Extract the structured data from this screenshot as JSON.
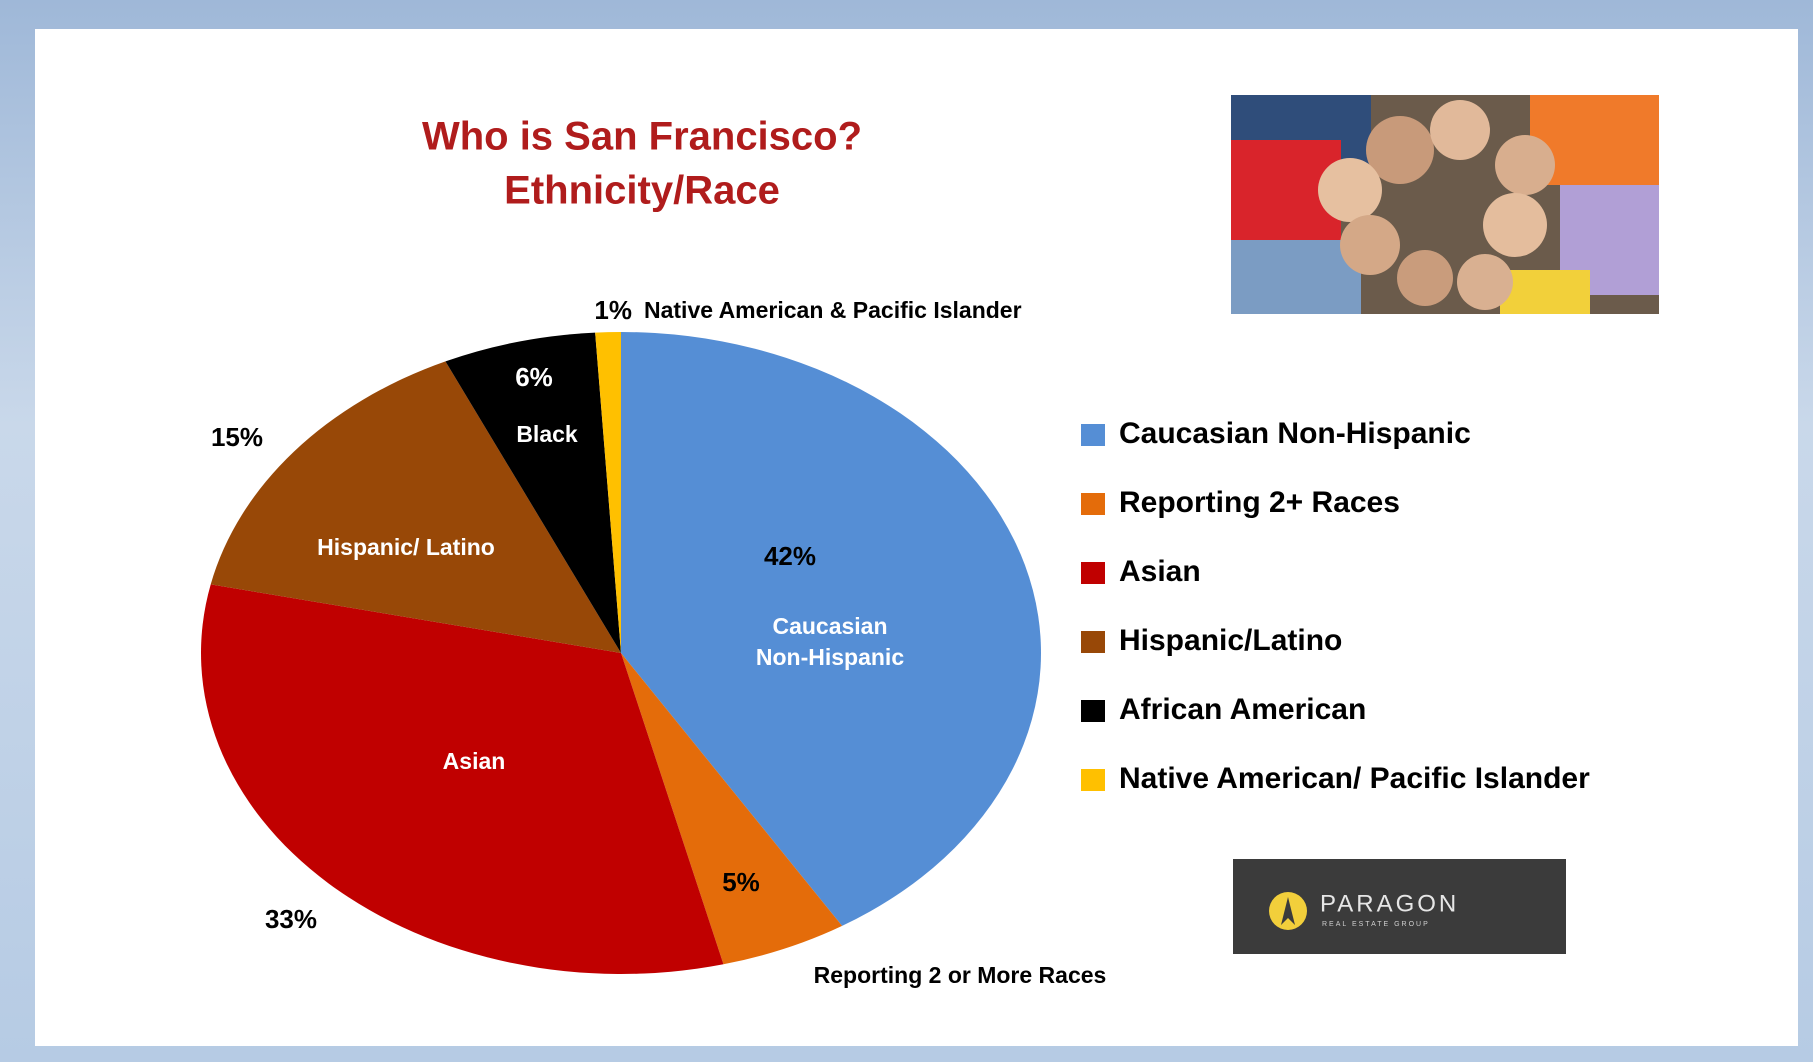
{
  "chart_data": {
    "type": "pie",
    "title": [
      "Who is San Francisco?",
      "Ethnicity/Race"
    ],
    "categories": [
      "Caucasian Non-Hispanic",
      "Reporting 2+ Races",
      "Asian",
      "Hispanic/Latino",
      "African American",
      "Native American/ Pacific Islander"
    ],
    "slice_labels": [
      [
        "Caucasian",
        "Non-Hispanic"
      ],
      [
        "Reporting 2 or More Races"
      ],
      [
        "Asian"
      ],
      [
        "Hispanic/ Latino"
      ],
      [
        "Black"
      ],
      [
        "Native American & Pacific Islander"
      ]
    ],
    "values": [
      42,
      5,
      33,
      15,
      6,
      1
    ],
    "value_labels": [
      "42%",
      "5%",
      "33%",
      "15%",
      "6%",
      "1%"
    ],
    "colors": [
      "#558ed5",
      "#e46c0a",
      "#c00000",
      "#984807",
      "#000000",
      "#ffc000"
    ],
    "legend": "right"
  },
  "logo": {
    "name": "PARAGON",
    "tagline": "REAL ESTATE GROUP"
  }
}
